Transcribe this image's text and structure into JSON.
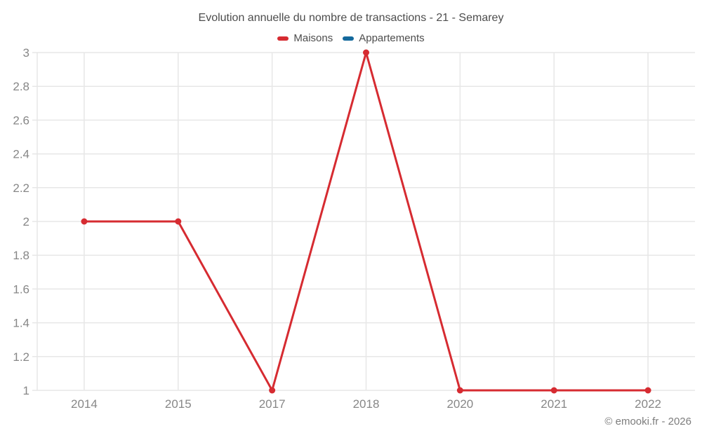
{
  "header": {
    "title": "Evolution annuelle du nombre de transactions - 21 - Semarey"
  },
  "legend": {
    "items": [
      {
        "label": "Maisons",
        "color": "#d62b31"
      },
      {
        "label": "Appartements",
        "color": "#14699c"
      }
    ]
  },
  "footer": {
    "copyright": "© emooki.fr - 2026"
  },
  "colors": {
    "grid": "#e7e7e7",
    "tick_label": "#878787",
    "title_text": "#4d4d4d",
    "maisons_red": "#d62b31",
    "appartements_blue": "#14699c",
    "background": "#ffffff"
  },
  "chart_data": {
    "type": "line",
    "title": "Evolution annuelle du nombre de transactions - 21 - Semarey",
    "categories": [
      "2014",
      "2015",
      "2017",
      "2018",
      "2020",
      "2021",
      "2022"
    ],
    "series": [
      {
        "name": "Maisons",
        "color": "#d62b31",
        "values": [
          2,
          2,
          1,
          3,
          1,
          1,
          1
        ]
      },
      {
        "name": "Appartements",
        "color": "#14699c",
        "values": []
      }
    ],
    "xlabel": "",
    "ylabel": "",
    "ylim": [
      1,
      3
    ],
    "ytick_step": 0.2,
    "ytick_labels": [
      "1",
      "1.2",
      "1.4",
      "1.6",
      "1.8",
      "2",
      "2.2",
      "2.4",
      "2.6",
      "2.8",
      "3"
    ],
    "grid": true,
    "legend_position": "top"
  }
}
